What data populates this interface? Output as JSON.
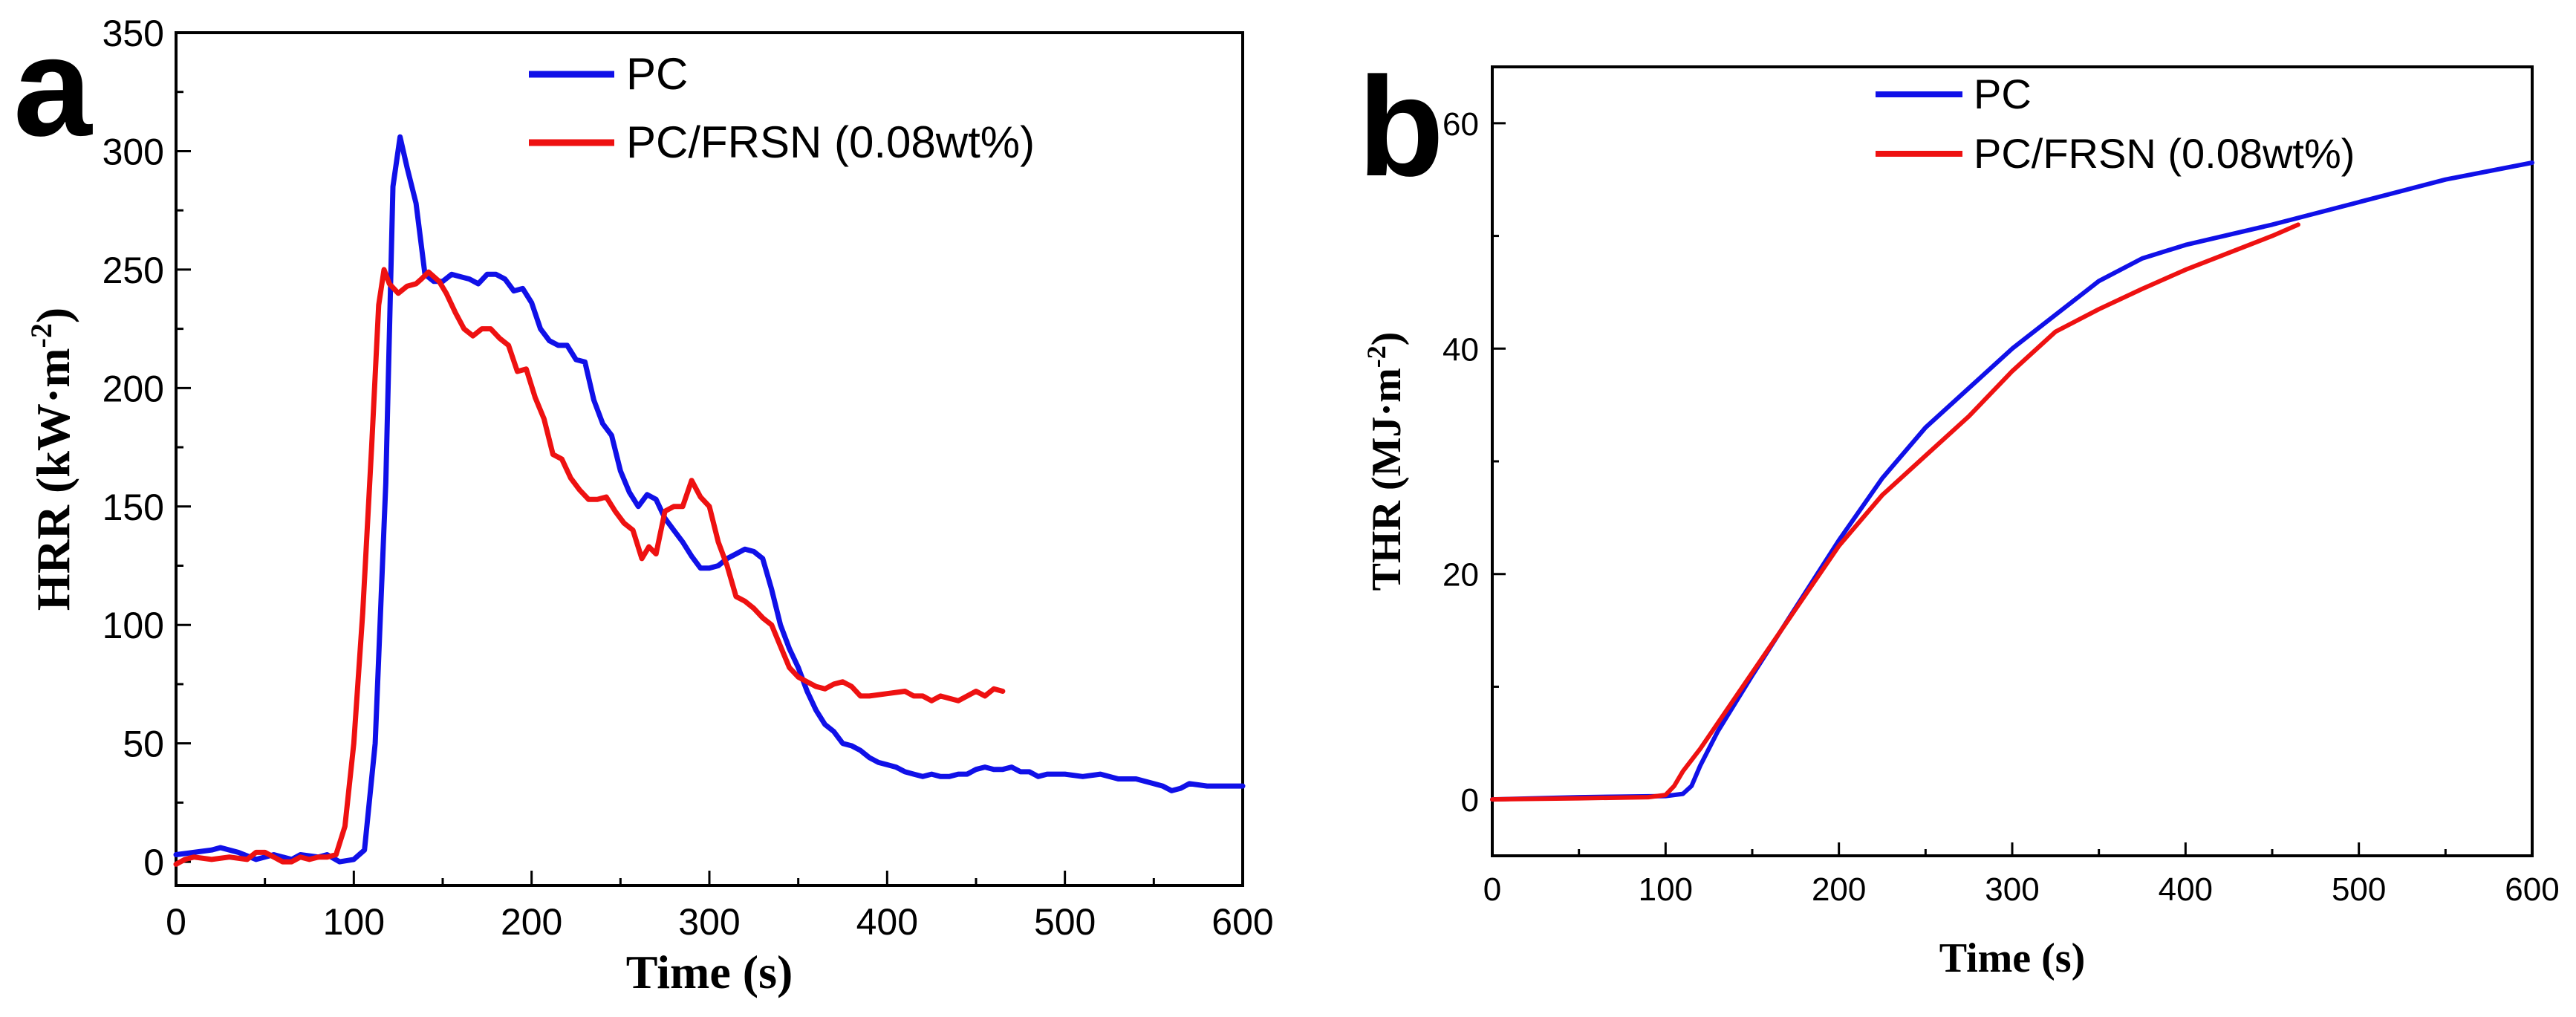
{
  "chart_data": [
    {
      "panel": "a",
      "type": "line",
      "xlabel": "Time (s)",
      "ylabel": "HRR (kW·m",
      "ylabel_sup": "-2",
      "ylabel_close": ")",
      "xlim": [
        0,
        600
      ],
      "ylim": [
        -10,
        350
      ],
      "xticks": [
        0,
        100,
        200,
        300,
        400,
        500,
        600
      ],
      "yticks": [
        0,
        50,
        100,
        150,
        200,
        250,
        300,
        350
      ],
      "grid": false,
      "legend_position": "top-center",
      "series": [
        {
          "name": "PC",
          "color": "#1010e8",
          "points": [
            [
              0,
              3
            ],
            [
              10,
              4
            ],
            [
              20,
              5
            ],
            [
              25,
              6
            ],
            [
              35,
              4
            ],
            [
              45,
              1
            ],
            [
              55,
              3
            ],
            [
              65,
              1
            ],
            [
              70,
              3
            ],
            [
              80,
              2
            ],
            [
              85,
              3
            ],
            [
              92,
              0
            ],
            [
              100,
              1
            ],
            [
              106,
              5
            ],
            [
              112,
              50
            ],
            [
              118,
              160
            ],
            [
              122,
              285
            ],
            [
              126,
              306
            ],
            [
              130,
              293
            ],
            [
              135,
              278
            ],
            [
              140,
              248
            ],
            [
              145,
              245
            ],
            [
              150,
              245
            ],
            [
              155,
              248
            ],
            [
              160,
              247
            ],
            [
              165,
              246
            ],
            [
              170,
              244
            ],
            [
              175,
              248
            ],
            [
              180,
              248
            ],
            [
              185,
              246
            ],
            [
              190,
              241
            ],
            [
              195,
              242
            ],
            [
              200,
              236
            ],
            [
              205,
              225
            ],
            [
              210,
              220
            ],
            [
              215,
              218
            ],
            [
              220,
              218
            ],
            [
              225,
              212
            ],
            [
              230,
              211
            ],
            [
              235,
              195
            ],
            [
              240,
              185
            ],
            [
              245,
              180
            ],
            [
              250,
              165
            ],
            [
              255,
              156
            ],
            [
              260,
              150
            ],
            [
              265,
              155
            ],
            [
              270,
              153
            ],
            [
              275,
              145
            ],
            [
              280,
              140
            ],
            [
              285,
              135
            ],
            [
              290,
              129
            ],
            [
              295,
              124
            ],
            [
              300,
              124
            ],
            [
              305,
              125
            ],
            [
              310,
              128
            ],
            [
              315,
              130
            ],
            [
              320,
              132
            ],
            [
              325,
              131
            ],
            [
              330,
              128
            ],
            [
              335,
              115
            ],
            [
              340,
              100
            ],
            [
              345,
              90
            ],
            [
              350,
              82
            ],
            [
              355,
              72
            ],
            [
              360,
              64
            ],
            [
              365,
              58
            ],
            [
              370,
              55
            ],
            [
              375,
              50
            ],
            [
              380,
              49
            ],
            [
              385,
              47
            ],
            [
              390,
              44
            ],
            [
              395,
              42
            ],
            [
              400,
              41
            ],
            [
              405,
              40
            ],
            [
              410,
              38
            ],
            [
              415,
              37
            ],
            [
              420,
              36
            ],
            [
              425,
              37
            ],
            [
              430,
              36
            ],
            [
              435,
              36
            ],
            [
              440,
              37
            ],
            [
              445,
              37
            ],
            [
              450,
              39
            ],
            [
              455,
              40
            ],
            [
              460,
              39
            ],
            [
              465,
              39
            ],
            [
              470,
              40
            ],
            [
              475,
              38
            ],
            [
              480,
              38
            ],
            [
              485,
              36
            ],
            [
              490,
              37
            ],
            [
              500,
              37
            ],
            [
              510,
              36
            ],
            [
              520,
              37
            ],
            [
              530,
              35
            ],
            [
              540,
              35
            ],
            [
              550,
              33
            ],
            [
              555,
              32
            ],
            [
              560,
              30
            ],
            [
              565,
              31
            ],
            [
              570,
              33
            ],
            [
              580,
              32
            ],
            [
              590,
              32
            ],
            [
              600,
              32
            ]
          ]
        },
        {
          "name": "PC/FRSN (0.08wt%)",
          "color": "#ee1111",
          "points": [
            [
              0,
              -1
            ],
            [
              5,
              1
            ],
            [
              10,
              2
            ],
            [
              20,
              1
            ],
            [
              30,
              2
            ],
            [
              40,
              1
            ],
            [
              45,
              4
            ],
            [
              50,
              4
            ],
            [
              55,
              2
            ],
            [
              60,
              0
            ],
            [
              65,
              0
            ],
            [
              70,
              2
            ],
            [
              75,
              1
            ],
            [
              80,
              2
            ],
            [
              85,
              2
            ],
            [
              90,
              3
            ],
            [
              95,
              15
            ],
            [
              100,
              50
            ],
            [
              105,
              105
            ],
            [
              110,
              175
            ],
            [
              114,
              235
            ],
            [
              117,
              250
            ],
            [
              120,
              244
            ],
            [
              125,
              240
            ],
            [
              130,
              243
            ],
            [
              135,
              244
            ],
            [
              138,
              246
            ],
            [
              142,
              249
            ],
            [
              148,
              245
            ],
            [
              152,
              240
            ],
            [
              157,
              232
            ],
            [
              162,
              225
            ],
            [
              167,
              222
            ],
            [
              172,
              225
            ],
            [
              177,
              225
            ],
            [
              182,
              221
            ],
            [
              187,
              218
            ],
            [
              192,
              207
            ],
            [
              197,
              208
            ],
            [
              202,
              196
            ],
            [
              207,
              187
            ],
            [
              212,
              172
            ],
            [
              217,
              170
            ],
            [
              222,
              162
            ],
            [
              227,
              157
            ],
            [
              232,
              153
            ],
            [
              237,
              153
            ],
            [
              242,
              154
            ],
            [
              247,
              148
            ],
            [
              252,
              143
            ],
            [
              257,
              140
            ],
            [
              262,
              128
            ],
            [
              266,
              133
            ],
            [
              270,
              130
            ],
            [
              275,
              148
            ],
            [
              280,
              150
            ],
            [
              285,
              150
            ],
            [
              290,
              161
            ],
            [
              295,
              154
            ],
            [
              300,
              150
            ],
            [
              305,
              135
            ],
            [
              310,
              125
            ],
            [
              315,
              112
            ],
            [
              320,
              110
            ],
            [
              325,
              107
            ],
            [
              330,
              103
            ],
            [
              335,
              100
            ],
            [
              340,
              91
            ],
            [
              345,
              82
            ],
            [
              350,
              78
            ],
            [
              355,
              76
            ],
            [
              360,
              74
            ],
            [
              365,
              73
            ],
            [
              370,
              75
            ],
            [
              375,
              76
            ],
            [
              380,
              74
            ],
            [
              385,
              70
            ],
            [
              390,
              70
            ],
            [
              400,
              71
            ],
            [
              410,
              72
            ],
            [
              415,
              70
            ],
            [
              420,
              70
            ],
            [
              425,
              68
            ],
            [
              430,
              70
            ],
            [
              435,
              69
            ],
            [
              440,
              68
            ],
            [
              445,
              70
            ],
            [
              450,
              72
            ],
            [
              455,
              70
            ],
            [
              460,
              73
            ],
            [
              465,
              72
            ]
          ]
        }
      ]
    },
    {
      "panel": "b",
      "type": "line",
      "xlabel": "Time (s)",
      "ylabel": "THR (MJ·m",
      "ylabel_sup": "-2",
      "ylabel_close": ")",
      "xlim": [
        0,
        600
      ],
      "ylim": [
        -5,
        65
      ],
      "xticks": [
        0,
        100,
        200,
        300,
        400,
        500,
        600
      ],
      "yticks": [
        0,
        20,
        40,
        60
      ],
      "grid": false,
      "legend_position": "top-center",
      "series": [
        {
          "name": "PC",
          "color": "#1010e8",
          "points": [
            [
              0,
              0
            ],
            [
              50,
              0.2
            ],
            [
              100,
              0.3
            ],
            [
              110,
              0.5
            ],
            [
              115,
              1.2
            ],
            [
              120,
              3
            ],
            [
              130,
              6
            ],
            [
              150,
              11
            ],
            [
              175,
              17
            ],
            [
              200,
              23
            ],
            [
              225,
              28.5
            ],
            [
              250,
              33
            ],
            [
              275,
              36.5
            ],
            [
              300,
              40
            ],
            [
              325,
              43
            ],
            [
              350,
              46
            ],
            [
              375,
              48
            ],
            [
              400,
              49.2
            ],
            [
              450,
              51
            ],
            [
              500,
              53
            ],
            [
              550,
              55
            ],
            [
              600,
              56.5
            ]
          ]
        },
        {
          "name": "PC/FRSN (0.08wt%)",
          "color": "#ee1111",
          "points": [
            [
              0,
              0
            ],
            [
              50,
              0.1
            ],
            [
              90,
              0.2
            ],
            [
              100,
              0.4
            ],
            [
              105,
              1.2
            ],
            [
              110,
              2.5
            ],
            [
              120,
              4.5
            ],
            [
              140,
              9
            ],
            [
              160,
              13.5
            ],
            [
              180,
              18
            ],
            [
              200,
              22.5
            ],
            [
              225,
              27
            ],
            [
              250,
              30.5
            ],
            [
              275,
              34
            ],
            [
              300,
              38
            ],
            [
              325,
              41.5
            ],
            [
              350,
              43.5
            ],
            [
              375,
              45.3
            ],
            [
              400,
              47
            ],
            [
              425,
              48.5
            ],
            [
              450,
              50
            ],
            [
              465,
              51
            ]
          ]
        }
      ]
    }
  ],
  "panel_a": {
    "letter": "a",
    "legend": [
      "PC",
      "PC/FRSN (0.08wt%)"
    ]
  },
  "panel_b": {
    "letter": "b",
    "legend": [
      "PC",
      "PC/FRSN (0.08wt%)"
    ]
  }
}
